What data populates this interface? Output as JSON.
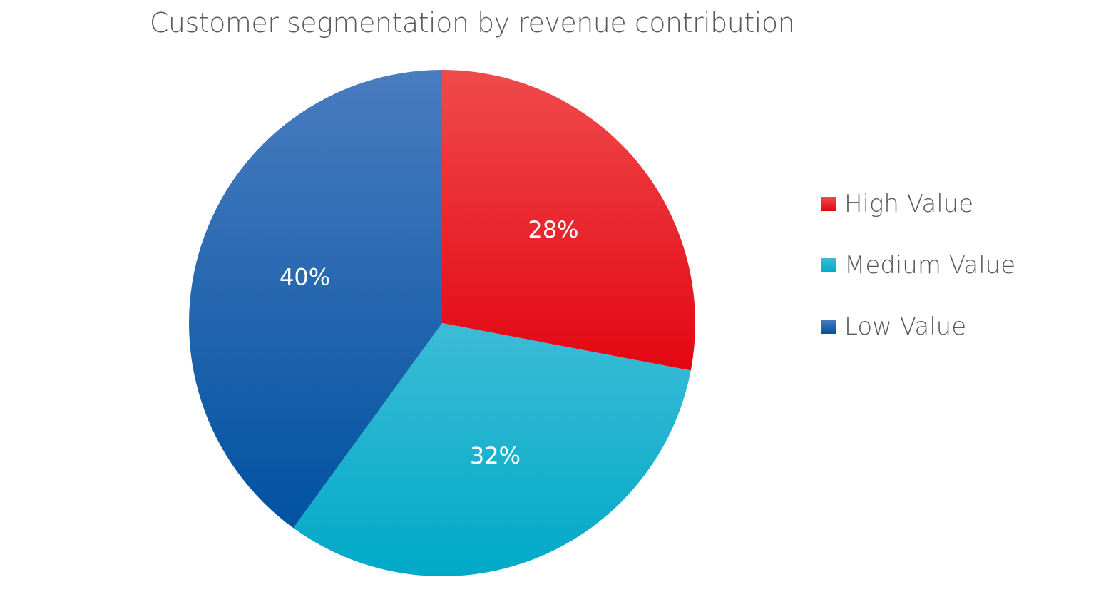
{
  "chart_data": {
    "type": "pie",
    "title": "Customer segmentation by revenue contribution",
    "categories": [
      "High Value",
      "Medium Value",
      "Low Value"
    ],
    "values": [
      28,
      32,
      40
    ],
    "data_labels": [
      "28%",
      "32%",
      "40%"
    ],
    "colors": [
      "#e30613",
      "#12b5d3",
      "#0a5fae"
    ],
    "gradient_tops": [
      "#ef4b4b",
      "#3cbcd6",
      "#4a7cc0"
    ],
    "gradient_bottoms": [
      "#e30613",
      "#00a9c8",
      "#0052a0"
    ],
    "legend_position": "right"
  }
}
